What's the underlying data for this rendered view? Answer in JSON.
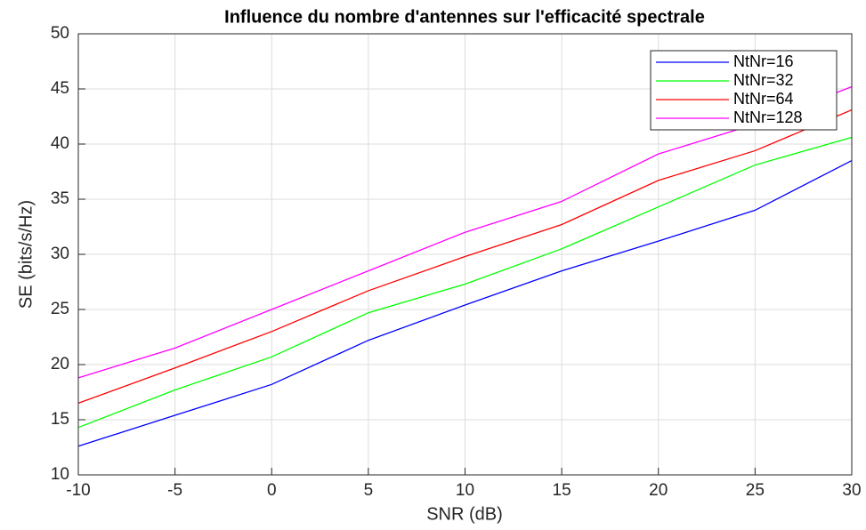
{
  "chart_data": {
    "type": "line",
    "title": "Influence du nombre d'antennes sur l'efficacité spectrale",
    "xlabel": "SNR (dB)",
    "ylabel": "SE (bits/s/Hz)",
    "x": [
      -10,
      -5,
      0,
      5,
      10,
      15,
      20,
      25,
      30
    ],
    "series": [
      {
        "name": "NtNr=16",
        "color": "#0000ff",
        "values": [
          12.6,
          15.4,
          18.2,
          22.2,
          25.4,
          28.5,
          31.2,
          34.0,
          38.5
        ]
      },
      {
        "name": "NtNr=32",
        "color": "#00ff00",
        "values": [
          14.3,
          17.7,
          20.7,
          24.7,
          27.3,
          30.5,
          34.3,
          38.1,
          40.6
        ]
      },
      {
        "name": "NtNr=64",
        "color": "#ff0000",
        "values": [
          16.5,
          19.7,
          23.0,
          26.7,
          29.8,
          32.7,
          36.7,
          39.4,
          43.1
        ]
      },
      {
        "name": "NtNr=128",
        "color": "#ff00ff",
        "values": [
          18.8,
          21.5,
          25.0,
          28.5,
          32.0,
          34.8,
          39.1,
          41.8,
          45.2
        ]
      }
    ],
    "xlim": [
      -10,
      30
    ],
    "xticks": [
      -10,
      -5,
      0,
      5,
      10,
      15,
      20,
      25,
      30
    ],
    "ylim": [
      10,
      50
    ],
    "yticks": [
      10,
      15,
      20,
      25,
      30,
      35,
      40,
      45,
      50
    ],
    "grid": true,
    "legend": "northeast"
  }
}
